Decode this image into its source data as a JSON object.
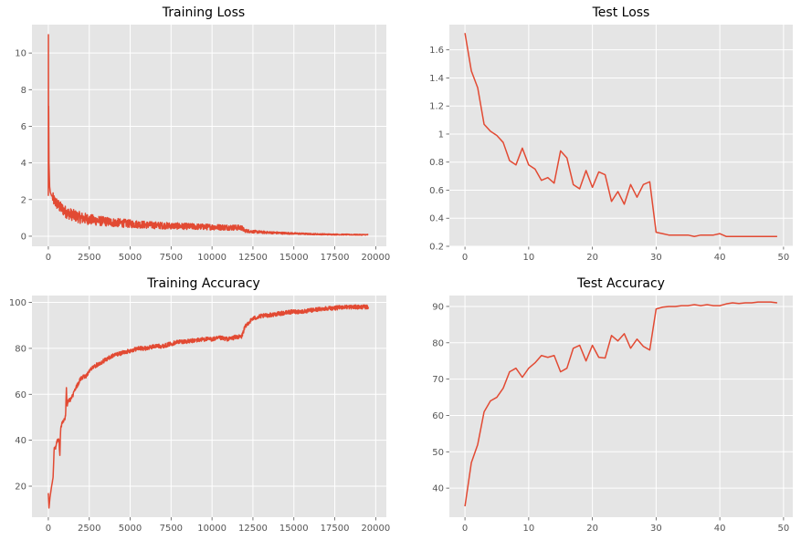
{
  "colors": {
    "panel_bg": "#e5e5e5",
    "grid": "#ffffff",
    "line": "#e24a33",
    "text": "#555555"
  },
  "chart_data": [
    {
      "type": "line",
      "title": "Training Loss",
      "xlim": [
        -1000,
        20650
      ],
      "ylim": [
        -0.55,
        11.55
      ],
      "xticks": [
        0,
        2500,
        5000,
        7500,
        10000,
        12500,
        15000,
        17500,
        20000
      ],
      "yticks": [
        0,
        2,
        4,
        6,
        8,
        10
      ],
      "grid": true,
      "noise": 0.32,
      "series": [
        {
          "x": [
            0,
            5,
            10,
            20,
            40,
            80,
            120,
            160,
            200,
            260,
            350,
            500,
            700,
            900,
            1100,
            1500,
            2000,
            2500,
            3000,
            3500,
            4000,
            5000,
            6000,
            7000,
            8000,
            9000,
            10000,
            11000,
            11500,
            11800,
            12000,
            12500,
            13000,
            14000,
            15000,
            16000,
            17000,
            18000,
            19000,
            19550
          ],
          "y": [
            2.2,
            11.0,
            6.5,
            7.1,
            4.0,
            2.7,
            2.4,
            2.3,
            2.2,
            2.1,
            1.95,
            1.8,
            1.6,
            1.45,
            1.3,
            1.15,
            1.0,
            0.92,
            0.85,
            0.8,
            0.75,
            0.68,
            0.62,
            0.58,
            0.55,
            0.52,
            0.5,
            0.48,
            0.47,
            0.46,
            0.3,
            0.25,
            0.22,
            0.18,
            0.15,
            0.12,
            0.1,
            0.09,
            0.08,
            0.08
          ]
        }
      ]
    },
    {
      "type": "line",
      "title": "Test Loss",
      "xlim": [
        -2.45,
        51.45
      ],
      "ylim": [
        0.2,
        1.78
      ],
      "xticks": [
        0,
        10,
        20,
        30,
        40,
        50
      ],
      "yticks": [
        0.2,
        0.4,
        0.6,
        0.8,
        1.0,
        1.2,
        1.4,
        1.6
      ],
      "grid": true,
      "noise": 0,
      "series": [
        {
          "x": [
            0,
            1,
            2,
            3,
            4,
            5,
            6,
            7,
            8,
            9,
            10,
            11,
            12,
            13,
            14,
            15,
            16,
            17,
            18,
            19,
            20,
            21,
            22,
            23,
            24,
            25,
            26,
            27,
            28,
            29,
            30,
            31,
            32,
            33,
            34,
            35,
            36,
            37,
            38,
            39,
            40,
            41,
            42,
            43,
            44,
            45,
            46,
            47,
            48,
            49
          ],
          "y": [
            1.72,
            1.45,
            1.33,
            1.07,
            1.02,
            0.99,
            0.94,
            0.81,
            0.78,
            0.9,
            0.78,
            0.75,
            0.67,
            0.69,
            0.65,
            0.88,
            0.83,
            0.64,
            0.61,
            0.74,
            0.62,
            0.73,
            0.71,
            0.52,
            0.59,
            0.5,
            0.64,
            0.55,
            0.64,
            0.66,
            0.3,
            0.29,
            0.28,
            0.28,
            0.28,
            0.28,
            0.27,
            0.28,
            0.28,
            0.28,
            0.29,
            0.27,
            0.27,
            0.27,
            0.27,
            0.27,
            0.27,
            0.27,
            0.27,
            0.27
          ]
        }
      ]
    },
    {
      "type": "line",
      "title": "Training Accuracy",
      "xlim": [
        -1000,
        20650
      ],
      "ylim": [
        6.5,
        103
      ],
      "xticks": [
        0,
        2500,
        5000,
        7500,
        10000,
        12500,
        15000,
        17500,
        20000
      ],
      "yticks": [
        20,
        40,
        60,
        80,
        100
      ],
      "grid": true,
      "noise": 0.9,
      "series": [
        {
          "x": [
            0,
            40,
            100,
            200,
            300,
            350,
            450,
            550,
            650,
            700,
            750,
            780,
            850,
            950,
            1050,
            1100,
            1150,
            1200,
            1400,
            1700,
            2000,
            2300,
            2600,
            3000,
            3500,
            4000,
            4500,
            5000,
            5500,
            6000,
            6500,
            7000,
            7500,
            8000,
            8500,
            9000,
            9500,
            10000,
            10500,
            11000,
            11500,
            11800,
            12000,
            12200,
            12500,
            13000,
            13500,
            14000,
            14500,
            15000,
            15500,
            16000,
            16500,
            17000,
            17500,
            18000,
            18500,
            19000,
            19550
          ],
          "y": [
            17,
            10.5,
            15,
            20,
            25,
            36,
            37,
            40,
            40,
            33,
            45,
            46,
            48,
            49,
            50,
            63,
            55,
            57,
            58,
            63,
            67,
            68,
            71,
            73,
            75,
            77,
            78,
            79,
            80,
            80,
            81,
            81,
            82,
            83,
            83,
            83.5,
            84,
            84,
            84.5,
            84,
            85,
            85,
            89,
            91,
            93,
            94,
            94.5,
            95,
            95.5,
            96,
            96,
            96.5,
            97,
            97.5,
            97.5,
            98,
            98,
            98,
            98
          ]
        }
      ]
    },
    {
      "type": "line",
      "title": "Test Accuracy",
      "xlim": [
        -2.45,
        51.45
      ],
      "ylim": [
        32,
        93
      ],
      "xticks": [
        0,
        10,
        20,
        30,
        40,
        50
      ],
      "yticks": [
        40,
        50,
        60,
        70,
        80,
        90
      ],
      "grid": true,
      "noise": 0,
      "series": [
        {
          "x": [
            0,
            1,
            2,
            3,
            4,
            5,
            6,
            7,
            8,
            9,
            10,
            11,
            12,
            13,
            14,
            15,
            16,
            17,
            18,
            19,
            20,
            21,
            22,
            23,
            24,
            25,
            26,
            27,
            28,
            29,
            30,
            31,
            32,
            33,
            34,
            35,
            36,
            37,
            38,
            39,
            40,
            41,
            42,
            43,
            44,
            45,
            46,
            47,
            48,
            49
          ],
          "y": [
            35,
            47,
            52,
            61,
            64,
            65,
            67.5,
            72,
            73,
            70.5,
            73,
            74.5,
            76.5,
            76,
            76.5,
            72,
            73,
            78.5,
            79.3,
            75,
            79.3,
            76,
            75.8,
            82,
            80.5,
            82.5,
            78.5,
            81,
            79,
            78,
            89.3,
            89.8,
            90,
            90,
            90.2,
            90.2,
            90.5,
            90.2,
            90.5,
            90.2,
            90.2,
            90.7,
            91,
            90.8,
            91,
            91,
            91.2,
            91.2,
            91.2,
            91
          ]
        }
      ]
    }
  ]
}
